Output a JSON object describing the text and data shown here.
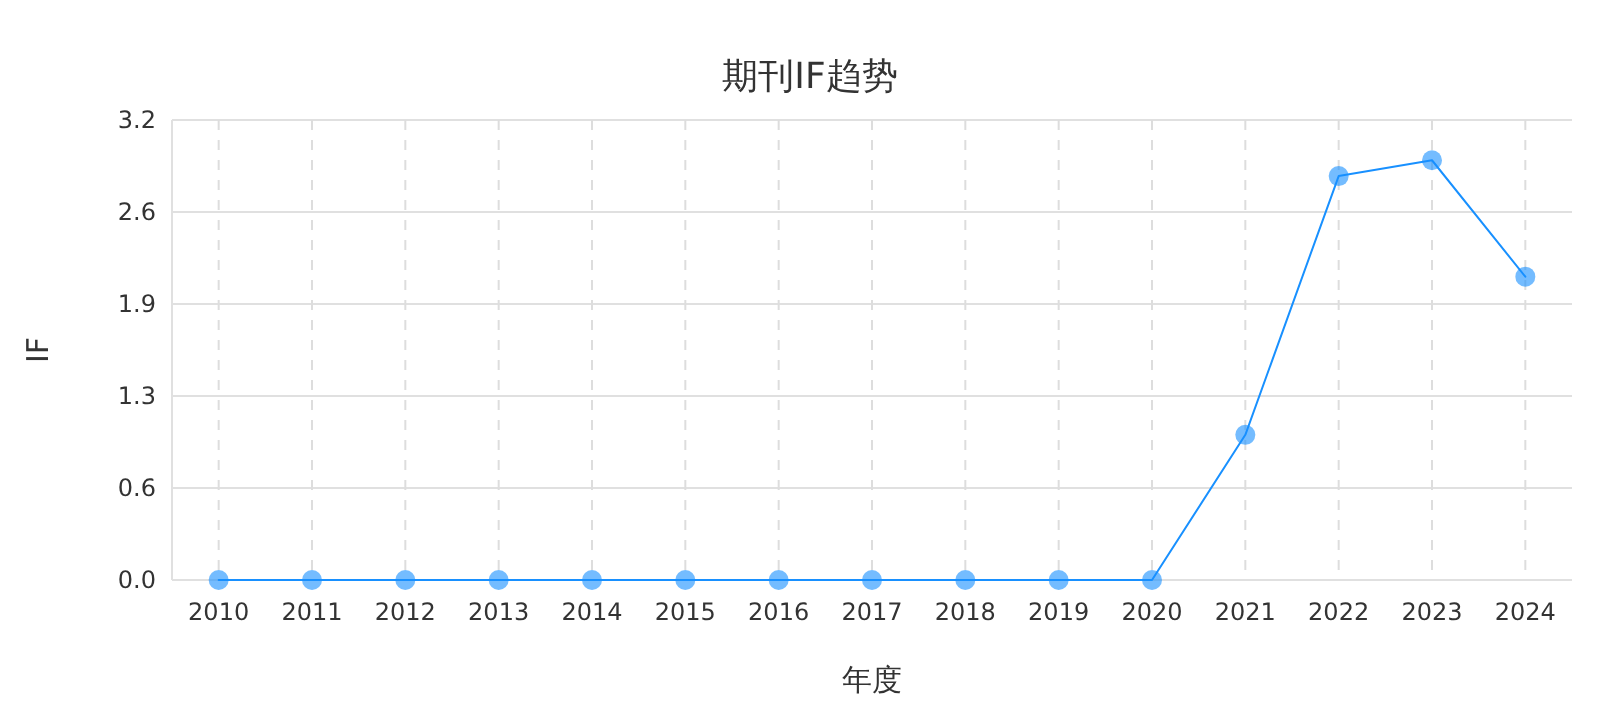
{
  "chart_data": {
    "type": "line",
    "title": "期刊IF趋势",
    "xlabel": "年度",
    "ylabel": "IF",
    "categories": [
      "2010",
      "2011",
      "2012",
      "2013",
      "2014",
      "2015",
      "2016",
      "2017",
      "2018",
      "2019",
      "2020",
      "2021",
      "2022",
      "2023",
      "2024"
    ],
    "series": [
      {
        "color": "#1890ff",
        "values": [
          0,
          0,
          0,
          0,
          0,
          0,
          0,
          0,
          0,
          0,
          0,
          1.01,
          2.81,
          2.92,
          2.11
        ]
      }
    ],
    "ylim": [
      0,
      3.2
    ],
    "yticks": [
      {
        "value": 0,
        "label": "0.0"
      },
      {
        "value": 0.64,
        "label": "0.6"
      },
      {
        "value": 1.28,
        "label": "1.3"
      },
      {
        "value": 1.92,
        "label": "1.9"
      },
      {
        "value": 2.56,
        "label": "2.6"
      },
      {
        "value": 3.2,
        "label": "3.2"
      }
    ],
    "grid": true,
    "marker": "circle",
    "line_style": "solid"
  }
}
